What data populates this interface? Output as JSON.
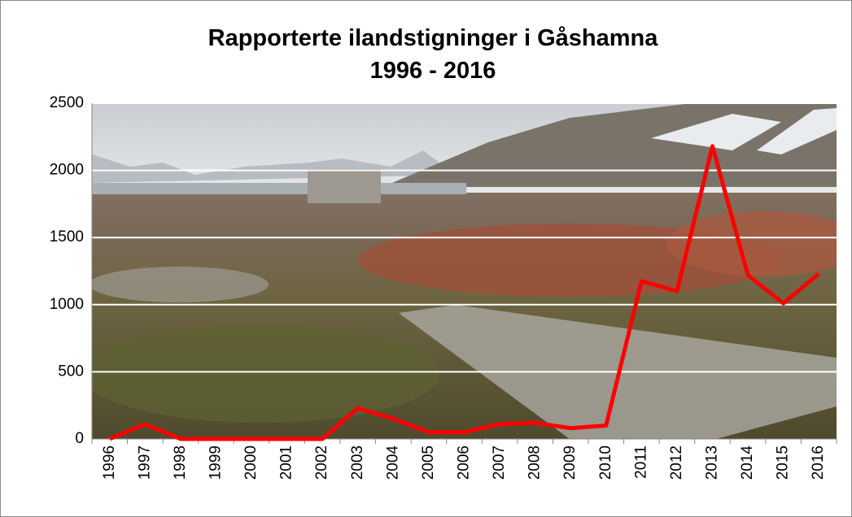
{
  "chart_data": {
    "type": "line",
    "title": "Rapporterte ilandstigninger i Gåshamna",
    "subtitle": "1996 - 2016",
    "categories": [
      "1996",
      "1997",
      "1998",
      "1999",
      "2000",
      "2001",
      "2002",
      "2003",
      "2004",
      "2005",
      "2006",
      "2007",
      "2008",
      "2009",
      "2010",
      "2011",
      "2012",
      "2013",
      "2014",
      "2015",
      "2016"
    ],
    "series": [
      {
        "color": "#ff0000",
        "values": [
          0,
          110,
          0,
          0,
          0,
          0,
          0,
          230,
          150,
          50,
          50,
          110,
          120,
          80,
          100,
          1175,
          1100,
          2180,
          1220,
          1010,
          1230
        ]
      }
    ],
    "ylim": [
      0,
      2500
    ],
    "yticks": [
      0,
      500,
      1000,
      1500,
      2000,
      2500
    ],
    "grid": true,
    "grid_color": "#ffffff"
  }
}
